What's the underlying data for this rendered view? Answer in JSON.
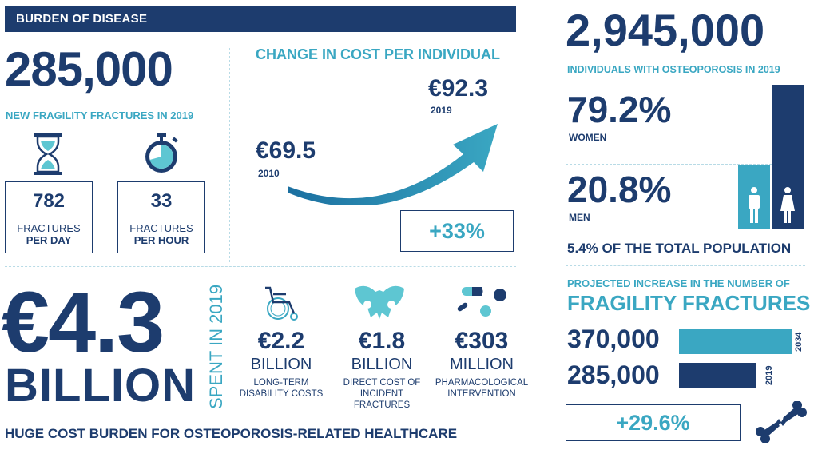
{
  "colors": {
    "navy": "#1d3c6e",
    "teal": "#3aa7c2",
    "light_teal": "#5ec6d2"
  },
  "header": {
    "title": "BURDEN OF DISEASE"
  },
  "fractures": {
    "number": "285,000",
    "caption": "NEW FRAGILITY FRACTURES IN 2019",
    "per_day": {
      "value": "782",
      "label1": "FRACTURES",
      "label2": "PER DAY",
      "icon": "hourglass-icon"
    },
    "per_hour": {
      "value": "33",
      "label1": "FRACTURES",
      "label2": "PER HOUR",
      "icon": "stopwatch-icon"
    }
  },
  "cost_change": {
    "title": "CHANGE IN COST PER INDIVIDUAL",
    "from_value": "€69.5",
    "from_year": "2010",
    "to_value": "€92.3",
    "to_year": "2019",
    "increase": "+33%"
  },
  "osteoporosis": {
    "number": "2,945,000",
    "caption": "INDIVIDUALS WITH OSTEOPOROSIS IN 2019",
    "women_pct": "79.2%",
    "women_label": "WOMEN",
    "women_share": 79.2,
    "men_pct": "20.8%",
    "men_label": "MEN",
    "men_share": 20.8,
    "population": "5.4% OF THE TOTAL POPULATION"
  },
  "total_cost": {
    "value": "€4.3",
    "unit": "BILLION",
    "spent": "SPENT IN 2019",
    "items": [
      {
        "icon": "wheelchair-icon",
        "value": "€2.2",
        "unit": "BILLION",
        "desc": [
          "LONG-TERM",
          "DISABILITY COSTS"
        ]
      },
      {
        "icon": "pelvis-icon",
        "value": "€1.8",
        "unit": "BILLION",
        "desc": [
          "DIRECT COST OF",
          "INCIDENT",
          "FRACTURES"
        ]
      },
      {
        "icon": "pills-icon",
        "value": "€303",
        "unit": "MILLION",
        "desc": [
          "PHARMACOLOGICAL",
          "INTERVENTION"
        ]
      }
    ],
    "footer": "HUGE COST BURDEN FOR OSTEOPOROSIS-RELATED HEALTHCARE"
  },
  "projection": {
    "title1": "PROJECTED INCREASE IN THE NUMBER OF",
    "title2": "FRAGILITY FRACTURES",
    "bars": [
      {
        "value": "370,000",
        "year": "2034",
        "count": 370000
      },
      {
        "value": "285,000",
        "year": "2019",
        "count": 285000
      }
    ],
    "increase": "+29.6%"
  }
}
